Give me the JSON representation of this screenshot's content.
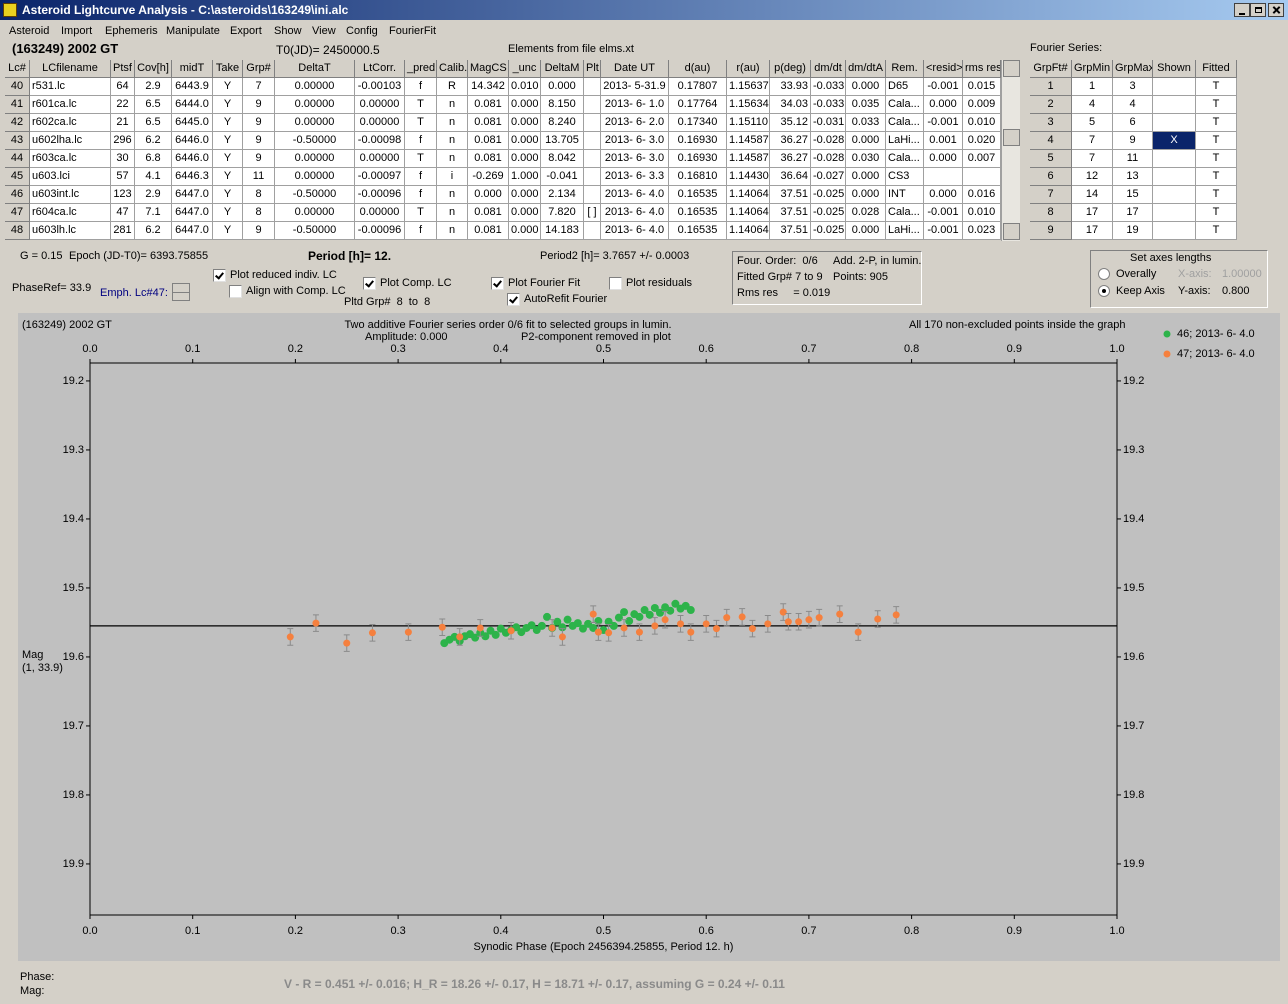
{
  "window": {
    "title": "Asteroid Lightcurve Analysis - C:\\asteroids\\163249\\ini.alc"
  },
  "menu": [
    "Asteroid",
    "Import",
    "Ephemeris",
    "Manipulate",
    "Export",
    "Show",
    "View",
    "Config",
    "FourierFit"
  ],
  "header": {
    "asteroid": "(163249) 2002 GT",
    "t0": "T0(JD)= 2450000.5",
    "elements": "Elements from file elms.xt",
    "fourier_label": "Fourier Series:"
  },
  "table": {
    "columns": [
      "Lc#",
      "LCfilename",
      "Ptsf",
      "Cov[h]",
      "midT",
      "Take",
      "Grp#",
      "DeltaT",
      "LtCorr.",
      "_pred.",
      "Calib.",
      "MagCS",
      "_unc",
      "DeltaM",
      "Plt",
      "Date UT",
      "d(au)",
      "r(au)",
      "p(deg)",
      "dm/dt",
      "dm/dtA",
      "Rem.",
      "<resid>",
      "rms res"
    ],
    "rows": [
      [
        "40",
        "r531.lc",
        "64",
        "2.9",
        "6443.9",
        "Y",
        "7",
        "0.00000",
        "-0.00103",
        "f",
        "R",
        "14.342",
        "0.010",
        "0.000",
        null,
        "2013- 5-31.9",
        "0.17807",
        "1.15637",
        "33.93",
        "-0.033",
        "0.000",
        "D65",
        "-0.001",
        "0.015"
      ],
      [
        "41",
        "r601ca.lc",
        "22",
        "6.5",
        "6444.0",
        "Y",
        "9",
        "0.00000",
        "0.00000",
        "T",
        "n",
        "0.081",
        "0.000",
        "8.150",
        null,
        "2013- 6- 1.0",
        "0.17764",
        "1.15634",
        "34.03",
        "-0.033",
        "0.035",
        "Cala...",
        "0.000",
        "0.009"
      ],
      [
        "42",
        "r602ca.lc",
        "21",
        "6.5",
        "6445.0",
        "Y",
        "9",
        "0.00000",
        "0.00000",
        "T",
        "n",
        "0.081",
        "0.000",
        "8.240",
        null,
        "2013- 6- 2.0",
        "0.17340",
        "1.15110",
        "35.12",
        "-0.031",
        "0.033",
        "Cala...",
        "-0.001",
        "0.010"
      ],
      [
        "43",
        "u602lha.lc",
        "296",
        "6.2",
        "6446.0",
        "Y",
        "9",
        "-0.50000",
        "-0.00098",
        "f",
        "n",
        "0.081",
        "0.000",
        "13.705",
        null,
        "2013- 6- 3.0",
        "0.16930",
        "1.14587",
        "36.27",
        "-0.028",
        "0.000",
        "LaHi...",
        "0.001",
        "0.020"
      ],
      [
        "44",
        "r603ca.lc",
        "30",
        "6.8",
        "6446.0",
        "Y",
        "9",
        "0.00000",
        "0.00000",
        "T",
        "n",
        "0.081",
        "0.000",
        "8.042",
        null,
        "2013- 6- 3.0",
        "0.16930",
        "1.14587",
        "36.27",
        "-0.028",
        "0.030",
        "Cala...",
        "0.000",
        "0.007"
      ],
      [
        "45",
        "u603.lci",
        "57",
        "4.1",
        "6446.3",
        "Y",
        "11",
        "0.00000",
        "-0.00097",
        "f",
        "i",
        "-0.269",
        "1.000",
        "-0.041",
        null,
        "2013- 6- 3.3",
        "0.16810",
        "1.14430",
        "36.64",
        "-0.027",
        "0.000",
        "CS3",
        null,
        null
      ],
      [
        "46",
        "u603int.lc",
        "123",
        "2.9",
        "6447.0",
        "Y",
        "8",
        "-0.50000",
        "-0.00096",
        "f",
        "n",
        "0.000",
        "0.000",
        "2.134",
        null,
        "2013- 6- 4.0",
        "0.16535",
        "1.14064",
        "37.51",
        "-0.025",
        "0.000",
        "INT",
        "0.000",
        "0.016"
      ],
      [
        "47",
        "r604ca.lc",
        "47",
        "7.1",
        "6447.0",
        "Y",
        "8",
        "0.00000",
        "0.00000",
        "T",
        "n",
        "0.081",
        "0.000",
        "7.820",
        "[ ]",
        "2013- 6- 4.0",
        "0.16535",
        "1.14064",
        "37.51",
        "-0.025",
        "0.028",
        "Cala...",
        "-0.001",
        "0.010"
      ],
      [
        "48",
        "u603lh.lc",
        "281",
        "6.2",
        "6447.0",
        "Y",
        "9",
        "-0.50000",
        "-0.00096",
        "f",
        "n",
        "0.081",
        "0.000",
        "14.183",
        null,
        "2013- 6- 4.0",
        "0.16535",
        "1.14064",
        "37.51",
        "-0.025",
        "0.000",
        "LaHi...",
        "-0.001",
        "0.023"
      ]
    ]
  },
  "fourier_table": {
    "columns": [
      "GrpFt#",
      "GrpMin",
      "GrpMax",
      "Shown",
      "Fitted"
    ],
    "rows": [
      [
        "1",
        "1",
        "3",
        null,
        "T"
      ],
      [
        "2",
        "4",
        "4",
        null,
        "T"
      ],
      [
        "3",
        "5",
        "6",
        null,
        "T"
      ],
      [
        "4",
        "7",
        "9",
        "X",
        "T"
      ],
      [
        "5",
        "7",
        "11",
        null,
        "T"
      ],
      [
        "6",
        "12",
        "13",
        null,
        "T"
      ],
      [
        "7",
        "14",
        "15",
        null,
        "T"
      ],
      [
        "8",
        "17",
        "17",
        null,
        "T"
      ],
      [
        "9",
        "17",
        "19",
        null,
        "T"
      ]
    ]
  },
  "controls": {
    "g": "G = 0.15",
    "epoch": "Epoch (JD-T0)= 6393.75855",
    "period": "Period [h]= 12.",
    "period2": "Period2 [h]= 3.7657 +/- 0.0003",
    "phaseref": "PhaseRef= 33.9",
    "emph": "Emph. Lc#47:",
    "pltd_grp": "Pltd Grp#  8  to  8",
    "checkboxes": [
      {
        "label": "Plot reduced indiv. LC",
        "checked": true
      },
      {
        "label": "Align with Comp. LC",
        "checked": false
      },
      {
        "label": "Plot Comp. LC",
        "checked": true
      },
      {
        "label": "Plot Fourier Fit",
        "checked": true
      },
      {
        "label": "AutoRefit Fourier",
        "checked": true
      },
      {
        "label": "Plot residuals",
        "checked": false
      }
    ]
  },
  "fit_info": [
    "Four. Order:  0/6",
    "Add. 2-P, in lumin.",
    "Fitted Grp# 7 to 9",
    "Points: 905",
    "Rms res     = 0.019"
  ],
  "axes_box": {
    "title": "Set axes lengths",
    "radios": [
      {
        "label": "Overally",
        "selected": false
      },
      {
        "label": "Keep Axis",
        "selected": true
      }
    ],
    "x_label": "X-axis:",
    "x_value": "1.00000",
    "y_label": "Y-axis:",
    "y_value": "0.800"
  },
  "chart_data": {
    "type": "scatter",
    "title": "(163249) 2002 GT",
    "subtitle": "Two additive Fourier series order 0/6 fit to selected groups in lumin.",
    "annotations": [
      "Amplitude: 0.000",
      "P2-component removed in plot",
      "All 170 non-excluded points inside the graph"
    ],
    "x_label": "Synodic Phase (Epoch 2456394.25855, Period 12. h)",
    "y_label": "Mag",
    "y_label2": "(1, 33.9)",
    "xlim": [
      0,
      1
    ],
    "xticks": [
      {
        "value": 0,
        "label": "0.0"
      },
      0.1,
      0.2,
      0.3,
      0.4,
      0.5,
      0.6,
      0.7,
      0.8,
      0.9,
      {
        "value": 1,
        "label": "1.0"
      }
    ],
    "ylim": [
      19.974,
      19.174
    ],
    "yticks": [
      19.2,
      19.3,
      19.4,
      19.5,
      19.6,
      19.7,
      19.8,
      19.9
    ],
    "fit_mag": 19.555,
    "fit_color": "#000000",
    "series": [
      {
        "name": "46; 2013- 6- 4.0",
        "color": "#2db34a",
        "x": [
          0.345,
          0.35,
          0.355,
          0.36,
          0.365,
          0.37,
          0.375,
          0.38,
          0.385,
          0.39,
          0.395,
          0.4,
          0.405,
          0.41,
          0.415,
          0.42,
          0.425,
          0.43,
          0.435,
          0.44,
          0.445,
          0.45,
          0.455,
          0.46,
          0.465,
          0.47,
          0.475,
          0.48,
          0.485,
          0.49,
          0.495,
          0.5,
          0.505,
          0.51,
          0.515,
          0.52,
          0.525,
          0.53,
          0.535,
          0.54,
          0.545,
          0.55,
          0.555,
          0.56,
          0.565,
          0.57,
          0.575,
          0.58,
          0.585
        ],
        "values": [
          19.58,
          19.575,
          19.571,
          19.577,
          19.57,
          19.567,
          19.572,
          19.565,
          19.57,
          19.562,
          19.568,
          19.559,
          19.565,
          19.561,
          19.557,
          19.564,
          19.558,
          19.554,
          19.561,
          19.555,
          19.542,
          19.558,
          19.549,
          19.557,
          19.546,
          19.555,
          19.551,
          19.559,
          19.552,
          19.558,
          19.548,
          19.561,
          19.549,
          19.555,
          19.543,
          19.535,
          19.548,
          19.538,
          19.542,
          19.532,
          19.539,
          19.529,
          19.536,
          19.528,
          19.533,
          19.523,
          19.53,
          19.526,
          19.532
        ]
      },
      {
        "name": "47; 2013- 6- 4.0",
        "color": "#f5803e",
        "x": [
          0.195,
          0.22,
          0.25,
          0.275,
          0.31,
          0.343,
          0.36,
          0.38,
          0.41,
          0.45,
          0.46,
          0.49,
          0.495,
          0.505,
          0.52,
          0.535,
          0.55,
          0.56,
          0.575,
          0.585,
          0.6,
          0.61,
          0.62,
          0.635,
          0.645,
          0.66,
          0.675,
          0.68,
          0.69,
          0.7,
          0.71,
          0.73,
          0.748,
          0.767,
          0.785
        ],
        "values": [
          19.571,
          19.551,
          19.58,
          19.565,
          19.564,
          19.557,
          19.571,
          19.558,
          19.562,
          19.558,
          19.571,
          19.538,
          19.564,
          19.565,
          19.558,
          19.564,
          19.555,
          19.546,
          19.552,
          19.564,
          19.552,
          19.559,
          19.543,
          19.542,
          19.559,
          19.552,
          19.535,
          19.549,
          19.549,
          19.546,
          19.543,
          19.538,
          19.564,
          19.545,
          19.539
        ],
        "errors": [
          0.012,
          0.012,
          0.012,
          0.012,
          0.012,
          0.012,
          0.012,
          0.012,
          0.012,
          0.012,
          0.012,
          0.012,
          0.012,
          0.012,
          0.012,
          0.012,
          0.012,
          0.012,
          0.012,
          0.012,
          0.012,
          0.012,
          0.012,
          0.012,
          0.012,
          0.012,
          0.012,
          0.012,
          0.012,
          0.012,
          0.012,
          0.012,
          0.012,
          0.012,
          0.012
        ]
      }
    ]
  },
  "footer": {
    "phase": "Phase:",
    "mag": "Mag:",
    "status": "V - R = 0.451 +/- 0.016; H_R = 18.26 +/- 0.17, H = 18.71 +/- 0.17, assuming G = 0.24 +/- 0.11"
  }
}
